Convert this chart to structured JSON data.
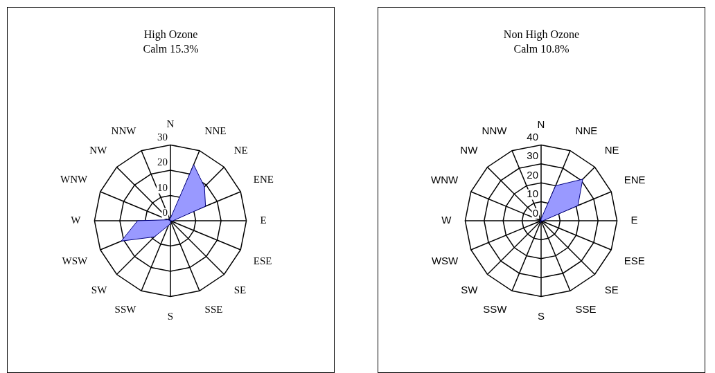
{
  "chart_data": [
    {
      "type": "radar",
      "title": "High Ozone",
      "subtitle": "Calm 15.3%",
      "categories": [
        "N",
        "NNE",
        "NE",
        "ENE",
        "E",
        "ESE",
        "SE",
        "SSE",
        "S",
        "SSW",
        "SW",
        "WSW",
        "W",
        "WNW",
        "NW",
        "NNW"
      ],
      "ylim": [
        0,
        30
      ],
      "yticks": [
        0,
        10,
        20,
        30
      ],
      "grid": true,
      "legend": false,
      "marker": "none",
      "series": [
        {
          "color": "#9999ff",
          "values": [
            1,
            24,
            19,
            15,
            1,
            0,
            0,
            0,
            1,
            2,
            9,
            21,
            13,
            1,
            0,
            1
          ]
        }
      ]
    },
    {
      "type": "radar",
      "title": "Non High Ozone",
      "subtitle": "Calm 10.8%",
      "categories": [
        "N",
        "NNE",
        "NE",
        "ENE",
        "E",
        "ESE",
        "SE",
        "SSE",
        "S",
        "SSW",
        "SW",
        "WSW",
        "W",
        "WNW",
        "NW",
        "NNW"
      ],
      "ylim": [
        0,
        40
      ],
      "yticks": [
        0,
        10,
        20,
        30,
        40
      ],
      "grid": true,
      "legend": false,
      "marker": "none",
      "series": [
        {
          "color": "#9999ff",
          "values": [
            1,
            20,
            31,
            21,
            1,
            0,
            0,
            0,
            0,
            1,
            1,
            0,
            0,
            0,
            0,
            0
          ]
        }
      ]
    }
  ]
}
